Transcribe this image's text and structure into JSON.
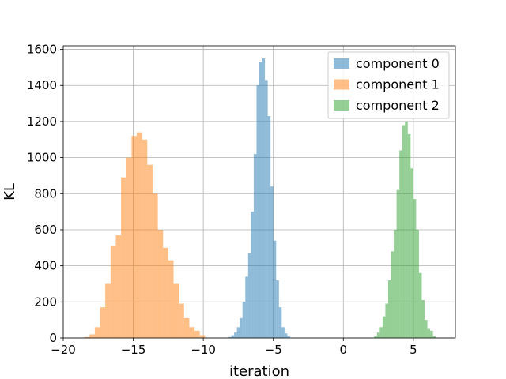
{
  "chart_data": {
    "type": "histogram",
    "xlabel": "iteration",
    "ylabel": "KL",
    "xlim": [
      -20,
      8
    ],
    "ylim": [
      0,
      1620
    ],
    "xticks": [
      -20,
      -15,
      -10,
      -5,
      0,
      5
    ],
    "xtick_labels": [
      "−20",
      "−15",
      "−10",
      "−5",
      "0",
      "5"
    ],
    "yticks": [
      0,
      200,
      400,
      600,
      800,
      1000,
      1200,
      1400,
      1600
    ],
    "ytick_labels": [
      "0",
      "200",
      "400",
      "600",
      "800",
      "1000",
      "1200",
      "1400",
      "1600"
    ],
    "grid": true,
    "legend_position": "upper right",
    "series": [
      {
        "name": "component 0",
        "color": "#1f77b4",
        "alpha": 0.5,
        "bin_start": -8.2,
        "bin_width": 0.2,
        "counts": [
          5,
          15,
          30,
          60,
          110,
          200,
          340,
          470,
          700,
          1020,
          1400,
          1530,
          1550,
          1430,
          1230,
          840,
          540,
          320,
          170,
          60,
          25,
          10
        ]
      },
      {
        "name": "component 1",
        "color": "#ff7f0e",
        "alpha": 0.5,
        "bin_start": -18.5,
        "bin_width": 0.375,
        "counts": [
          5,
          20,
          60,
          170,
          300,
          510,
          570,
          890,
          1000,
          1120,
          1140,
          1100,
          960,
          800,
          600,
          500,
          430,
          300,
          190,
          110,
          60,
          40,
          15
        ]
      },
      {
        "name": "component 2",
        "color": "#2ca02c",
        "alpha": 0.5,
        "bin_start": 2.2,
        "bin_width": 0.2,
        "counts": [
          10,
          30,
          60,
          120,
          190,
          320,
          480,
          600,
          820,
          1040,
          1180,
          1200,
          1130,
          940,
          770,
          600,
          360,
          210,
          100,
          50,
          40,
          10
        ]
      }
    ]
  }
}
